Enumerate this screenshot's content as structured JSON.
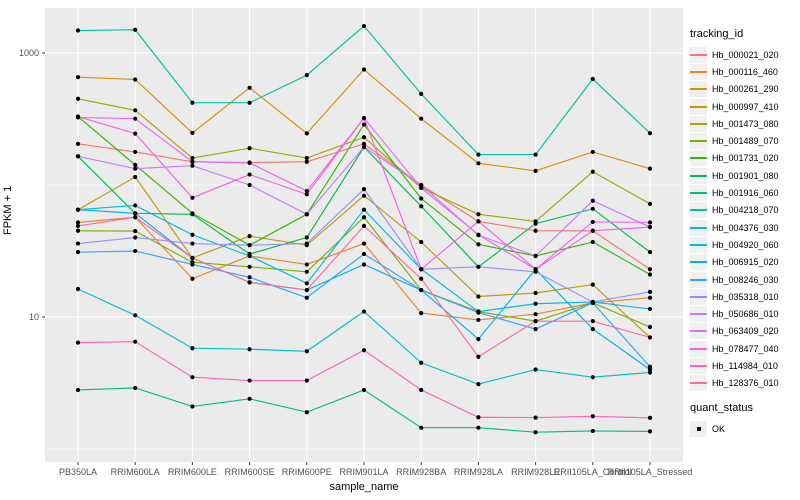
{
  "axes": {
    "y_label": "FPKM + 1",
    "x_label": "sample_name",
    "y_ticks": [
      {
        "label": "1000",
        "value": 1000
      },
      {
        "label": "10",
        "value": 10
      }
    ],
    "y_minor_gridlines": [
      100,
      1
    ],
    "tick_label_color": "#4d4d4d",
    "tick_mark_color": "#333333"
  },
  "legend": {
    "tracking_title": "tracking_id",
    "quant_title": "quant_status",
    "quant_value": "OK"
  },
  "style": {
    "panel_bg": "#ebebeb",
    "grid_color": "#ffffff",
    "point_color": "#000000"
  },
  "chart_data": {
    "type": "line",
    "title": "",
    "xlabel": "sample_name",
    "ylabel": "FPKM + 1",
    "yscale": "log10",
    "ylim": [
      1,
      2000
    ],
    "grid": true,
    "legend_position": "right",
    "point_marker": "black dot at every observation",
    "categories": [
      "PB350LA",
      "RRIM600LA",
      "RRIM600LE",
      "RRIM600SE",
      "RRIM600PE",
      "RRIM901LA",
      "RRIM928BA",
      "RRIM928LA",
      "RRIM928LE",
      "RRII105LA_Control",
      "RRII105LA_Stressed"
    ],
    "series": [
      {
        "name": "Hb_000021_020",
        "color": "#F8766D",
        "values": [
          205,
          178,
          150,
          148,
          150,
          205,
          100,
          53,
          45,
          45,
          23
        ]
      },
      {
        "name": "Hb_000116_460",
        "color": "#EA8331",
        "values": [
          52,
          57,
          19.5,
          29,
          25,
          36,
          10.7,
          9.5,
          10.5,
          12.8,
          14
        ]
      },
      {
        "name": "Hb_000261_290",
        "color": "#D89000",
        "values": [
          656,
          630,
          248,
          545,
          246,
          750,
          318,
          146,
          128,
          178,
          133
        ]
      },
      {
        "name": "Hb_000997_410",
        "color": "#C09B00",
        "values": [
          65,
          115,
          28,
          41,
          35,
          83,
          37,
          14.3,
          15.2,
          17.6,
          7
        ]
      },
      {
        "name": "Hb_001473_080",
        "color": "#A3A500",
        "values": [
          450,
          368,
          160,
          190,
          160,
          230,
          95,
          60,
          53,
          126,
          72
        ]
      },
      {
        "name": "Hb_001489_070",
        "color": "#7CAE00",
        "values": [
          45,
          44.7,
          26,
          24,
          22,
          57,
          16,
          11,
          9.3,
          12.8,
          8.4
        ]
      },
      {
        "name": "Hb_001731_020",
        "color": "#39B600",
        "values": [
          330,
          142,
          61,
          35,
          60,
          287,
          79,
          35.5,
          29,
          37,
          21
        ]
      },
      {
        "name": "Hb_001901_080",
        "color": "#00BB4E",
        "values": [
          165,
          61,
          60,
          30,
          40,
          194,
          69,
          24,
          51,
          66,
          31
        ]
      },
      {
        "name": "Hb_001916_060",
        "color": "#00BF7D",
        "values": [
          2.8,
          2.9,
          2.1,
          2.4,
          1.9,
          2.8,
          1.45,
          1.45,
          1.34,
          1.37,
          1.36
        ]
      },
      {
        "name": "Hb_004218_070",
        "color": "#00C1A3",
        "values": [
          1480,
          1500,
          420,
          420,
          680,
          1600,
          490,
          170,
          170,
          635,
          247
        ]
      },
      {
        "name": "Hb_004376_030",
        "color": "#00BFC4",
        "values": [
          16.3,
          10.3,
          5.8,
          5.7,
          5.5,
          11,
          4.5,
          3.1,
          4,
          3.5,
          3.8
        ]
      },
      {
        "name": "Hb_004920_060",
        "color": "#00BAE0",
        "values": [
          65,
          70,
          42,
          29,
          18,
          65,
          23,
          11,
          12.6,
          13,
          11.5
        ]
      },
      {
        "name": "Hb_006915_020",
        "color": "#00B0F6",
        "values": [
          65,
          61,
          28,
          18.3,
          16,
          25,
          16,
          6.8,
          23,
          8.1,
          4
        ]
      },
      {
        "name": "Hb_008246_030",
        "color": "#35A2FF",
        "values": [
          31,
          31.6,
          25,
          20,
          14,
          30,
          16,
          10.8,
          8.1,
          12.8,
          4.2
        ]
      },
      {
        "name": "Hb_035318_010",
        "color": "#9590FF",
        "values": [
          36,
          40,
          36,
          35,
          36,
          93,
          23,
          24,
          22,
          13,
          15.5
        ]
      },
      {
        "name": "Hb_050686_010",
        "color": "#C77CFF",
        "values": [
          165,
          133,
          140,
          100,
          60,
          194,
          100,
          41.7,
          29,
          76,
          48
        ]
      },
      {
        "name": "Hb_063409_020",
        "color": "#E76BF3",
        "values": [
          325,
          318,
          150,
          147,
          90,
          321,
          95,
          42,
          23,
          52.5,
          52
        ]
      },
      {
        "name": "Hb_078477_040",
        "color": "#FA62DB",
        "values": [
          330,
          245,
          80,
          120,
          85,
          321,
          23,
          53,
          23,
          45,
          48
        ]
      },
      {
        "name": "Hb_114984_010",
        "color": "#FF62BC",
        "values": [
          6.4,
          6.5,
          3.5,
          3.3,
          3.3,
          5.6,
          2.8,
          1.74,
          1.73,
          1.77,
          1.72
        ]
      },
      {
        "name": "Hb_128376_010",
        "color": "#FF6A98",
        "values": [
          49,
          57,
          28,
          18.3,
          16,
          49,
          19.5,
          5,
          9.3,
          9.3,
          7
        ]
      }
    ]
  }
}
